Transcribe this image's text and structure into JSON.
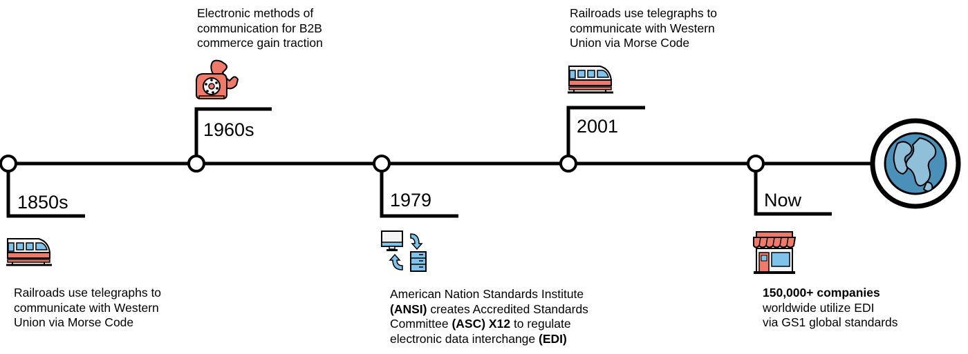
{
  "colors": {
    "line": "#000000",
    "train_body": "#f4f4f4",
    "train_stripe": "#ef7a6a",
    "train_window": "#7fc3ea",
    "phone": "#ef7a6a",
    "computer_blue": "#7fc3ea",
    "store_awning": "#ef7a6a",
    "globe_water": "#4a90b8"
  },
  "milestones": [
    {
      "year": "1850s",
      "icon": "train-icon",
      "lines": [
        "Railroads use telegraphs to",
        "communicate with Western",
        "Union via Morse Code"
      ]
    },
    {
      "year": "1960s",
      "icon": "telephone-icon",
      "lines": [
        "Electronic methods of",
        "communication for B2B",
        "commerce gain traction"
      ]
    },
    {
      "year": "1979",
      "icon": "computer-server-icon",
      "line1": "American Nation Standards Institute",
      "line2_bold": "(ANSI)",
      "line2_rest": " creates Accredited Standards",
      "line3_pre": "Committee ",
      "line3_bold": "(ASC) X12",
      "line3_rest": " to regulate",
      "line4_pre": "electronic data interchange ",
      "line4_bold": "(EDI)"
    },
    {
      "year": "2001",
      "icon": "train-icon",
      "lines": [
        "Railroads use telegraphs to",
        "communicate with Western",
        "Union via Morse Code"
      ]
    },
    {
      "year": "Now",
      "icon": "store-icon",
      "line1_bold": "150,000+ companies",
      "line2": "worldwide utilize EDI",
      "line3": "via GS1 global standards"
    }
  ],
  "end_icon": "globe-icon"
}
